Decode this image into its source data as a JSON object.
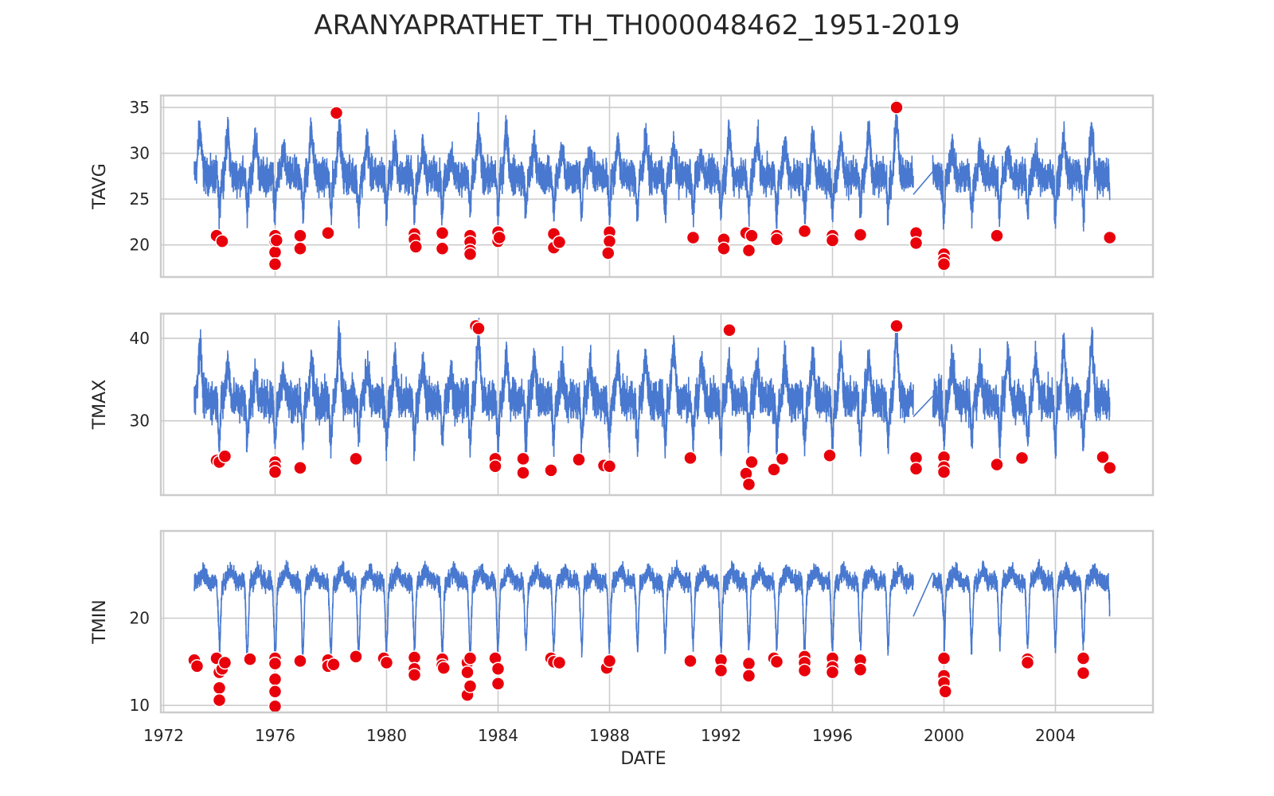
{
  "chart_data": {
    "type": "line",
    "title": "ARANYAPRATHET_TH_TH000048462_1951-2019",
    "xlabel": "DATE",
    "xlim": [
      1971.9,
      2007.5
    ],
    "x_ticks": [
      1972,
      1976,
      1980,
      1984,
      1988,
      1992,
      1996,
      2000,
      2004
    ],
    "x_tick_labels": [
      "1972",
      "1976",
      "1980",
      "1984",
      "1988",
      "1992",
      "1996",
      "2000",
      "2004"
    ],
    "grid": true,
    "line_color": "#4878CF",
    "marker_color": "#E8000B",
    "panels": [
      {
        "name": "TAVG",
        "ylabel": "TAVG",
        "ylim": [
          16.5,
          36.3
        ],
        "y_ticks": [
          20,
          25,
          30,
          35
        ],
        "y_tick_labels": [
          "20",
          "25",
          "30",
          "35"
        ],
        "segments": [
          [
            1973.1,
            1998.9
          ],
          [
            1999.6,
            2005.95
          ]
        ],
        "series": {
          "mean": 27.5,
          "amp": 2.8,
          "noise": 1.6,
          "peaks": [
            33.5,
            33.0,
            32.5,
            31.0,
            33.5,
            33.8,
            32.0,
            31.5,
            31.0,
            30.5,
            33.0,
            33.5,
            32.0,
            31.5,
            31.0,
            32.0,
            32.5,
            31.5,
            30.5,
            33.0,
            32.5,
            31.5,
            32.5,
            32.0,
            33.0,
            35.0,
            30.5,
            31.5,
            31.5,
            31.0,
            30.5,
            32.5,
            33.5
          ]
        },
        "outliers": [
          {
            "x": 1973.9,
            "y": 21.0
          },
          {
            "x": 1974.1,
            "y": 20.4
          },
          {
            "x": 1976.0,
            "y": 21.0
          },
          {
            "x": 1976.0,
            "y": 20.4
          },
          {
            "x": 1976.0,
            "y": 19.2
          },
          {
            "x": 1976.0,
            "y": 17.9
          },
          {
            "x": 1976.05,
            "y": 20.5
          },
          {
            "x": 1976.9,
            "y": 21.0
          },
          {
            "x": 1976.9,
            "y": 19.6
          },
          {
            "x": 1977.9,
            "y": 21.3
          },
          {
            "x": 1978.2,
            "y": 34.4
          },
          {
            "x": 1981.0,
            "y": 21.2
          },
          {
            "x": 1981.0,
            "y": 20.6
          },
          {
            "x": 1981.05,
            "y": 19.8
          },
          {
            "x": 1982.0,
            "y": 21.3
          },
          {
            "x": 1982.0,
            "y": 19.6
          },
          {
            "x": 1983.0,
            "y": 21.0
          },
          {
            "x": 1983.0,
            "y": 20.3
          },
          {
            "x": 1983.0,
            "y": 19.4
          },
          {
            "x": 1983.0,
            "y": 19.0
          },
          {
            "x": 1984.0,
            "y": 21.4
          },
          {
            "x": 1984.0,
            "y": 20.4
          },
          {
            "x": 1984.05,
            "y": 20.8
          },
          {
            "x": 1986.0,
            "y": 21.2
          },
          {
            "x": 1986.0,
            "y": 19.7
          },
          {
            "x": 1986.2,
            "y": 20.3
          },
          {
            "x": 1988.0,
            "y": 21.4
          },
          {
            "x": 1988.0,
            "y": 20.4
          },
          {
            "x": 1987.95,
            "y": 19.1
          },
          {
            "x": 1991.0,
            "y": 20.8
          },
          {
            "x": 1992.1,
            "y": 20.6
          },
          {
            "x": 1992.1,
            "y": 19.6
          },
          {
            "x": 1992.9,
            "y": 21.3
          },
          {
            "x": 1993.1,
            "y": 21.0
          },
          {
            "x": 1993.0,
            "y": 19.4
          },
          {
            "x": 1994.0,
            "y": 21.0
          },
          {
            "x": 1994.0,
            "y": 20.6
          },
          {
            "x": 1995.0,
            "y": 21.5
          },
          {
            "x": 1996.0,
            "y": 21.0
          },
          {
            "x": 1996.0,
            "y": 20.5
          },
          {
            "x": 1997.0,
            "y": 21.1
          },
          {
            "x": 1998.3,
            "y": 35.0
          },
          {
            "x": 1999.0,
            "y": 21.3
          },
          {
            "x": 1999.0,
            "y": 20.2
          },
          {
            "x": 2000.0,
            "y": 19.0
          },
          {
            "x": 2000.0,
            "y": 18.4
          },
          {
            "x": 2000.0,
            "y": 17.9
          },
          {
            "x": 2001.9,
            "y": 21.0
          },
          {
            "x": 2005.95,
            "y": 20.8
          }
        ]
      },
      {
        "name": "TMAX",
        "ylabel": "TMAX",
        "ylim": [
          21.0,
          43.0
        ],
        "y_ticks": [
          30,
          40
        ],
        "y_tick_labels": [
          "30",
          "40"
        ],
        "segments": [
          [
            1973.1,
            1998.9
          ],
          [
            1999.6,
            2005.95
          ]
        ],
        "series": {
          "mean": 32.5,
          "amp": 3.5,
          "noise": 2.0,
          "peaks": [
            40.0,
            38.0,
            36.5,
            37.0,
            38.0,
            40.5,
            37.0,
            38.0,
            37.5,
            36.5,
            41.0,
            38.5,
            38.0,
            37.0,
            37.5,
            38.0,
            38.5,
            40.5,
            37.5,
            38.0,
            37.5,
            38.0,
            38.5,
            39.0,
            38.0,
            41.0,
            40.0,
            38.0,
            37.5,
            39.0,
            38.5,
            40.0,
            40.5
          ]
        },
        "outliers": [
          {
            "x": 1973.9,
            "y": 25.2
          },
          {
            "x": 1974.0,
            "y": 25.0
          },
          {
            "x": 1974.2,
            "y": 25.7
          },
          {
            "x": 1976.0,
            "y": 25.0
          },
          {
            "x": 1976.0,
            "y": 24.4
          },
          {
            "x": 1976.0,
            "y": 23.8
          },
          {
            "x": 1976.9,
            "y": 24.3
          },
          {
            "x": 1978.9,
            "y": 25.4
          },
          {
            "x": 1983.2,
            "y": 41.5
          },
          {
            "x": 1983.3,
            "y": 41.2
          },
          {
            "x": 1983.9,
            "y": 25.4
          },
          {
            "x": 1983.9,
            "y": 24.5
          },
          {
            "x": 1984.9,
            "y": 25.4
          },
          {
            "x": 1984.9,
            "y": 23.7
          },
          {
            "x": 1985.9,
            "y": 24.0
          },
          {
            "x": 1986.9,
            "y": 25.3
          },
          {
            "x": 1987.8,
            "y": 24.6
          },
          {
            "x": 1988.0,
            "y": 24.5
          },
          {
            "x": 1990.9,
            "y": 25.5
          },
          {
            "x": 1992.3,
            "y": 41.0
          },
          {
            "x": 1992.9,
            "y": 23.6
          },
          {
            "x": 1993.0,
            "y": 22.3
          },
          {
            "x": 1993.1,
            "y": 25.0
          },
          {
            "x": 1993.9,
            "y": 24.1
          },
          {
            "x": 1994.2,
            "y": 25.4
          },
          {
            "x": 1995.9,
            "y": 25.8
          },
          {
            "x": 1998.3,
            "y": 41.5
          },
          {
            "x": 1999.0,
            "y": 25.5
          },
          {
            "x": 1999.0,
            "y": 24.2
          },
          {
            "x": 2000.0,
            "y": 25.6
          },
          {
            "x": 2000.0,
            "y": 24.4
          },
          {
            "x": 2000.0,
            "y": 23.8
          },
          {
            "x": 2001.9,
            "y": 24.7
          },
          {
            "x": 2002.8,
            "y": 25.5
          },
          {
            "x": 2005.7,
            "y": 25.6
          },
          {
            "x": 2005.95,
            "y": 24.3
          }
        ]
      },
      {
        "name": "TMIN",
        "ylabel": "TMIN",
        "ylim": [
          9.2,
          30.0
        ],
        "y_ticks": [
          10,
          20
        ],
        "y_tick_labels": [
          "10",
          "20"
        ],
        "segments": [
          [
            1973.1,
            1998.9
          ],
          [
            1999.6,
            2005.95
          ]
        ],
        "series": {
          "mean": 24.2,
          "amp": 1.2,
          "noise": 0.9,
          "dips": [
            18.0,
            15.5,
            16.0,
            15.0,
            16.5,
            15.5,
            16.0,
            17.0,
            16.5,
            15.5,
            16.0,
            17.0,
            16.5,
            17.0,
            16.0,
            17.5,
            16.5,
            17.0,
            17.0,
            16.5,
            17.0,
            16.5,
            16.0,
            17.0,
            16.5,
            17.0,
            20.0,
            16.0,
            18.0,
            17.0,
            16.5,
            17.0,
            17.0
          ]
        },
        "outliers": [
          {
            "x": 1973.1,
            "y": 15.2
          },
          {
            "x": 1973.2,
            "y": 14.5
          },
          {
            "x": 1973.9,
            "y": 15.4
          },
          {
            "x": 1974.0,
            "y": 13.8
          },
          {
            "x": 1974.0,
            "y": 12.0
          },
          {
            "x": 1974.0,
            "y": 10.6
          },
          {
            "x": 1974.1,
            "y": 14.2
          },
          {
            "x": 1974.2,
            "y": 14.9
          },
          {
            "x": 1975.1,
            "y": 15.3
          },
          {
            "x": 1976.0,
            "y": 15.4
          },
          {
            "x": 1976.0,
            "y": 14.8
          },
          {
            "x": 1976.0,
            "y": 13.0
          },
          {
            "x": 1976.0,
            "y": 11.6
          },
          {
            "x": 1976.0,
            "y": 9.9
          },
          {
            "x": 1976.9,
            "y": 15.1
          },
          {
            "x": 1977.9,
            "y": 15.2
          },
          {
            "x": 1977.9,
            "y": 14.5
          },
          {
            "x": 1978.1,
            "y": 14.7
          },
          {
            "x": 1978.9,
            "y": 15.6
          },
          {
            "x": 1979.9,
            "y": 15.4
          },
          {
            "x": 1980.0,
            "y": 14.9
          },
          {
            "x": 1981.0,
            "y": 15.5
          },
          {
            "x": 1981.0,
            "y": 14.2
          },
          {
            "x": 1981.0,
            "y": 13.5
          },
          {
            "x": 1982.0,
            "y": 15.3
          },
          {
            "x": 1982.0,
            "y": 14.6
          },
          {
            "x": 1982.05,
            "y": 14.3
          },
          {
            "x": 1982.9,
            "y": 14.9
          },
          {
            "x": 1982.9,
            "y": 13.8
          },
          {
            "x": 1982.9,
            "y": 11.2
          },
          {
            "x": 1983.0,
            "y": 15.4
          },
          {
            "x": 1983.0,
            "y": 12.2
          },
          {
            "x": 1983.9,
            "y": 15.4
          },
          {
            "x": 1984.0,
            "y": 14.2
          },
          {
            "x": 1984.0,
            "y": 12.5
          },
          {
            "x": 1985.9,
            "y": 15.4
          },
          {
            "x": 1986.0,
            "y": 15.0
          },
          {
            "x": 1986.2,
            "y": 14.9
          },
          {
            "x": 1987.9,
            "y": 14.3
          },
          {
            "x": 1988.0,
            "y": 15.1
          },
          {
            "x": 1990.9,
            "y": 15.1
          },
          {
            "x": 1992.0,
            "y": 15.2
          },
          {
            "x": 1992.0,
            "y": 14.0
          },
          {
            "x": 1993.0,
            "y": 14.8
          },
          {
            "x": 1993.0,
            "y": 13.4
          },
          {
            "x": 1993.9,
            "y": 15.4
          },
          {
            "x": 1994.0,
            "y": 15.0
          },
          {
            "x": 1995.0,
            "y": 15.6
          },
          {
            "x": 1995.0,
            "y": 14.9
          },
          {
            "x": 1995.0,
            "y": 14.0
          },
          {
            "x": 1996.0,
            "y": 15.4
          },
          {
            "x": 1996.0,
            "y": 14.4
          },
          {
            "x": 1996.0,
            "y": 13.8
          },
          {
            "x": 1997.0,
            "y": 15.2
          },
          {
            "x": 1997.0,
            "y": 14.1
          },
          {
            "x": 2000.0,
            "y": 15.4
          },
          {
            "x": 2000.0,
            "y": 13.4
          },
          {
            "x": 2000.0,
            "y": 12.6
          },
          {
            "x": 2000.05,
            "y": 11.6
          },
          {
            "x": 2003.0,
            "y": 15.3
          },
          {
            "x": 2003.0,
            "y": 14.9
          },
          {
            "x": 2005.0,
            "y": 15.4
          },
          {
            "x": 2005.0,
            "y": 13.7
          }
        ]
      }
    ]
  }
}
